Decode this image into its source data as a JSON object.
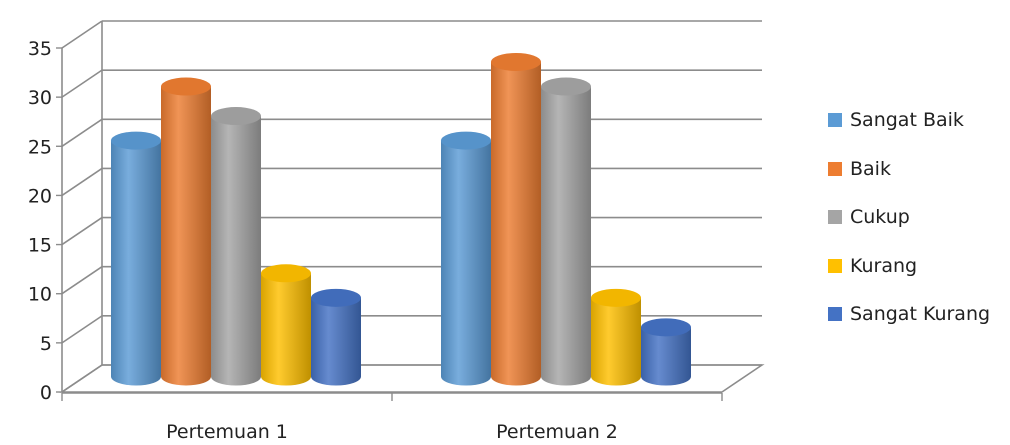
{
  "chart_data": {
    "type": "bar",
    "style": "3d-cylinder",
    "categories": [
      "Pertemuan 1",
      "Pertemuan 2"
    ],
    "series": [
      {
        "name": "Sangat Baik",
        "color": "#5B9BD5",
        "values": [
          24,
          24
        ]
      },
      {
        "name": "Baik",
        "color": "#ED7D31",
        "values": [
          29.5,
          32
        ]
      },
      {
        "name": "Cukup",
        "color": "#A5A5A5",
        "values": [
          26.5,
          29.5
        ]
      },
      {
        "name": "Kurang",
        "color": "#FFC000",
        "values": [
          10.5,
          8
        ]
      },
      {
        "name": "Sangat Kurang",
        "color": "#4472C4",
        "values": [
          8,
          5
        ]
      }
    ],
    "y_ticks": [
      "0",
      "5",
      "10",
      "15",
      "20",
      "25",
      "30",
      "35"
    ],
    "ylim": [
      0,
      35
    ],
    "grid": true,
    "legend_position": "right"
  }
}
